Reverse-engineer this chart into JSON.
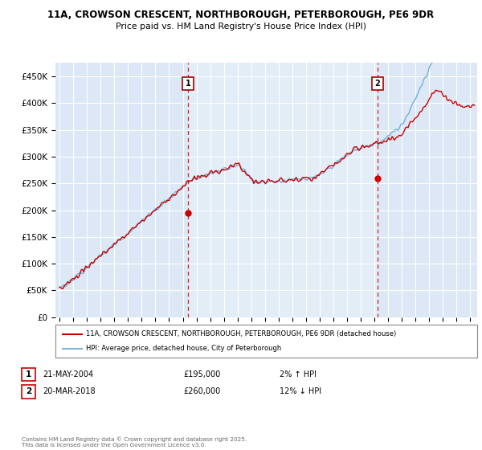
{
  "title_line1": "11A, CROWSON CRESCENT, NORTHBOROUGH, PETERBOROUGH, PE6 9DR",
  "title_line2": "Price paid vs. HM Land Registry's House Price Index (HPI)",
  "ylim": [
    0,
    475000
  ],
  "yticks": [
    0,
    50000,
    100000,
    150000,
    200000,
    250000,
    300000,
    350000,
    400000,
    450000
  ],
  "ytick_labels": [
    "£0",
    "£50K",
    "£100K",
    "£150K",
    "£200K",
    "£250K",
    "£300K",
    "£350K",
    "£400K",
    "£450K"
  ],
  "sale1_date": "21-MAY-2004",
  "sale1_price": 195000,
  "sale1_hpi_diff": "2% ↑ HPI",
  "sale2_date": "20-MAR-2018",
  "sale2_price": 260000,
  "sale2_hpi_diff": "12% ↓ HPI",
  "legend_line1": "11A, CROWSON CRESCENT, NORTHBOROUGH, PETERBOROUGH, PE6 9DR (detached house)",
  "legend_line2": "HPI: Average price, detached house, City of Peterborough",
  "footer": "Contains HM Land Registry data © Crown copyright and database right 2025.\nThis data is licensed under the Open Government Licence v3.0.",
  "price_color": "#cc0000",
  "hpi_color": "#7fb3d8",
  "sale_vline_color": "#cc0000",
  "plot_bg_color": "#dce8f5",
  "grid_color": "#ffffff",
  "sale1_x_year": 2004.38,
  "sale2_x_year": 2018.21,
  "xlim_left": 1994.7,
  "xlim_right": 2025.5
}
